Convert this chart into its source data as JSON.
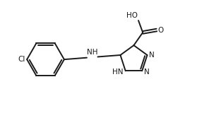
{
  "background_color": "#ffffff",
  "line_color": "#1a1a1a",
  "line_width": 1.4,
  "font_size": 7.5,
  "figsize": [
    2.79,
    1.6
  ],
  "dpi": 100,
  "xlim": [
    0.0,
    10.0
  ],
  "ylim": [
    0.8,
    5.8
  ]
}
